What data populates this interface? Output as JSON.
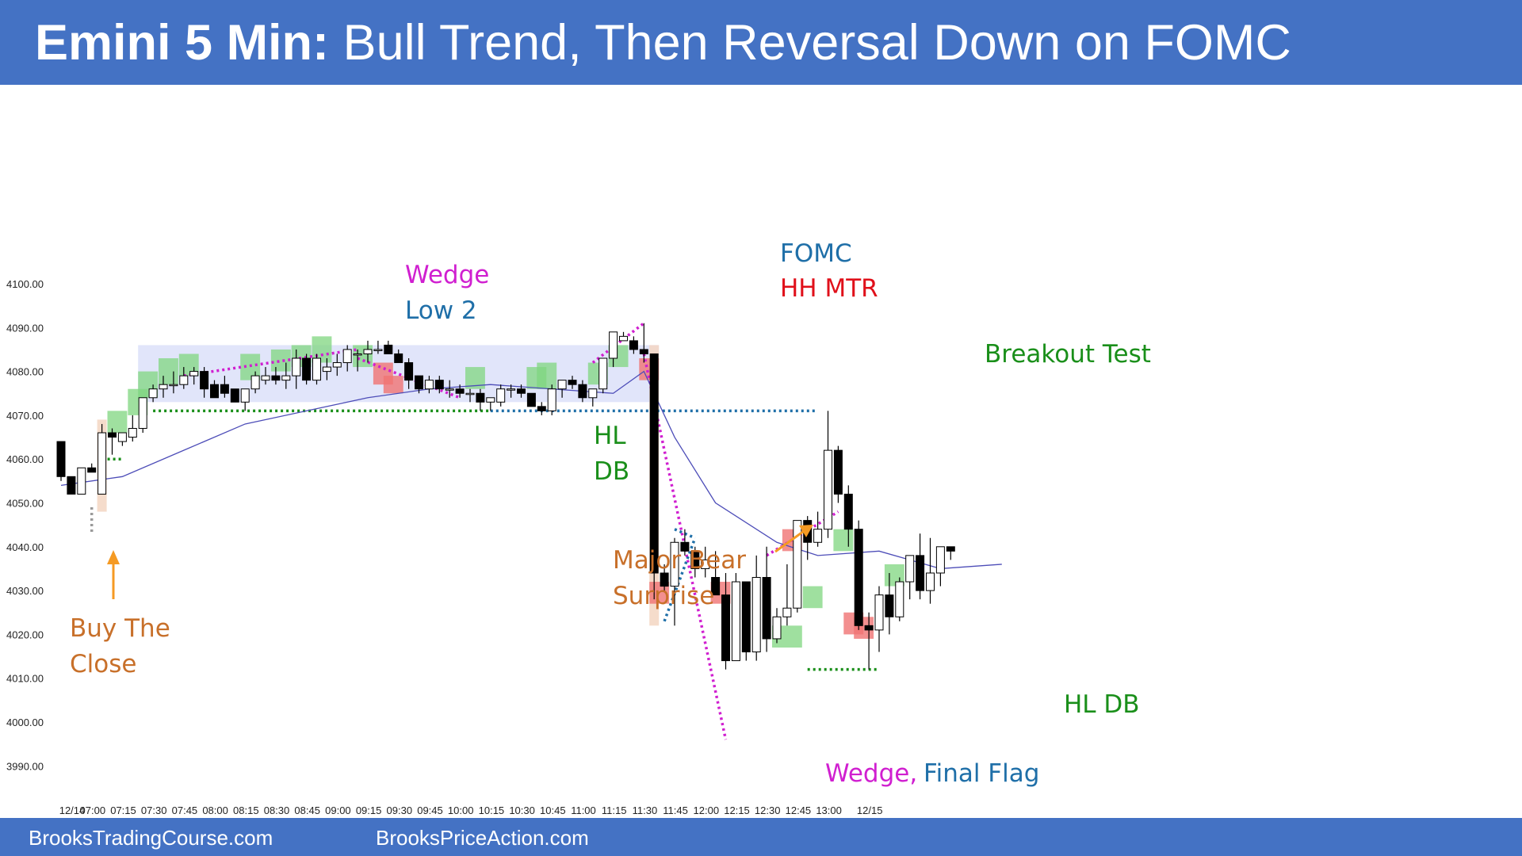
{
  "header": {
    "title_bold": "Emini 5 Min:",
    "title_rest": "Bull Trend, Then Reversal Down on FOMC"
  },
  "footer": {
    "link_left": "BrooksTradingCourse.com",
    "link_right": "BrooksPriceAction.com"
  },
  "colors": {
    "header_bg": "#4472c4",
    "bull_box": "#7fd67f",
    "bear_box": "#f07373",
    "range_box": "#c9d0f5",
    "highlight": "#f3d6c2",
    "ema": "#4d4db8",
    "green_dots": "#1a8f1a",
    "blue_dots": "#1f6fa8",
    "magenta_dots": "#d01fd0",
    "orange": "#f59a23"
  },
  "chart_data": {
    "type": "candlestick",
    "title": "Emini 5 Min: Bull Trend, Then Reversal Down on FOMC",
    "ylim": [
      3984,
      4112
    ],
    "yticks": [
      3990,
      4000,
      4010,
      4020,
      4030,
      4040,
      4050,
      4060,
      4070,
      4080,
      4090,
      4100
    ],
    "ytick_labels": [
      "3990.00",
      "4000.00",
      "4010.00",
      "4020.00",
      "4030.00",
      "4040.00",
      "4050.00",
      "4060.00",
      "4070.00",
      "4080.00",
      "4090.00",
      "4100.00"
    ],
    "x_tick_labels": [
      {
        "bar": 0,
        "label": "12/14"
      },
      {
        "bar": 2,
        "label": "07:00"
      },
      {
        "bar": 5,
        "label": "07:15"
      },
      {
        "bar": 8,
        "label": "07:30"
      },
      {
        "bar": 11,
        "label": "07:45"
      },
      {
        "bar": 14,
        "label": "08:00"
      },
      {
        "bar": 17,
        "label": "08:15"
      },
      {
        "bar": 20,
        "label": "08:30"
      },
      {
        "bar": 23,
        "label": "08:45"
      },
      {
        "bar": 26,
        "label": "09:00"
      },
      {
        "bar": 29,
        "label": "09:15"
      },
      {
        "bar": 32,
        "label": "09:30"
      },
      {
        "bar": 35,
        "label": "09:45"
      },
      {
        "bar": 38,
        "label": "10:00"
      },
      {
        "bar": 41,
        "label": "10:15"
      },
      {
        "bar": 44,
        "label": "10:30"
      },
      {
        "bar": 47,
        "label": "10:45"
      },
      {
        "bar": 50,
        "label": "11:00"
      },
      {
        "bar": 53,
        "label": "11:15"
      },
      {
        "bar": 56,
        "label": "11:30"
      },
      {
        "bar": 59,
        "label": "11:45"
      },
      {
        "bar": 62,
        "label": "12:00"
      },
      {
        "bar": 65,
        "label": "12:15"
      },
      {
        "bar": 68,
        "label": "12:30"
      },
      {
        "bar": 71,
        "label": "12:45"
      },
      {
        "bar": 74,
        "label": "13:00"
      },
      {
        "bar": 78,
        "label": "12/15"
      }
    ],
    "bars_ohlc": [
      [
        4064,
        4064,
        4055,
        4056
      ],
      [
        4056,
        4056,
        4052,
        4052
      ],
      [
        4052,
        4058,
        4052,
        4058
      ],
      [
        4058,
        4059,
        4057,
        4057
      ],
      [
        4052,
        4068,
        4052,
        4066
      ],
      [
        4066,
        4067,
        4061,
        4065
      ],
      [
        4064,
        4066,
        4063,
        4066
      ],
      [
        4065,
        4070,
        4064,
        4067
      ],
      [
        4067,
        4074,
        4066,
        4074
      ],
      [
        4074,
        4077,
        4073,
        4076
      ],
      [
        4076,
        4079,
        4074,
        4077
      ],
      [
        4077,
        4080,
        4075,
        4077
      ],
      [
        4077,
        4081,
        4076,
        4079
      ],
      [
        4079,
        4081,
        4077,
        4080
      ],
      [
        4080,
        4081,
        4074,
        4076
      ],
      [
        4077,
        4078,
        4074,
        4074
      ],
      [
        4077,
        4079,
        4074,
        4075
      ],
      [
        4076,
        4076,
        4073,
        4073
      ],
      [
        4073,
        4076,
        4071,
        4076
      ],
      [
        4076,
        4080,
        4075,
        4079
      ],
      [
        4078,
        4081,
        4077,
        4079
      ],
      [
        4079,
        4081,
        4077,
        4078
      ],
      [
        4078,
        4082,
        4076,
        4079
      ],
      [
        4079,
        4085,
        4076,
        4083
      ],
      [
        4083,
        4084,
        4077,
        4078
      ],
      [
        4078,
        4084,
        4077,
        4083
      ],
      [
        4080,
        4083,
        4078,
        4081
      ],
      [
        4081,
        4084,
        4079,
        4082
      ],
      [
        4082,
        4086,
        4080,
        4085
      ],
      [
        4084,
        4085,
        4080,
        4084
      ],
      [
        4084,
        4087,
        4082,
        4085
      ],
      [
        4085,
        4087,
        4084,
        4085
      ],
      [
        4086,
        4087,
        4084,
        4084
      ],
      [
        4084,
        4085,
        4082,
        4082
      ],
      [
        4082,
        4083,
        4076,
        4078
      ],
      [
        4079,
        4079,
        4075,
        4076
      ],
      [
        4076,
        4079,
        4075,
        4078
      ],
      [
        4078,
        4079,
        4075,
        4076
      ],
      [
        4076,
        4078,
        4074,
        4076
      ],
      [
        4076,
        4077,
        4074,
        4075
      ],
      [
        4075,
        4076,
        4073,
        4075
      ],
      [
        4075,
        4076,
        4071,
        4073
      ],
      [
        4073,
        4074,
        4071,
        4074
      ],
      [
        4073,
        4077,
        4072,
        4076
      ],
      [
        4076,
        4077,
        4074,
        4076
      ],
      [
        4076,
        4077,
        4074,
        4075
      ],
      [
        4075,
        4075,
        4072,
        4072
      ],
      [
        4072,
        4073,
        4070,
        4071
      ],
      [
        4071,
        4077,
        4070,
        4076
      ],
      [
        4076,
        4078,
        4074,
        4078
      ],
      [
        4078,
        4079,
        4076,
        4077
      ],
      [
        4077,
        4078,
        4073,
        4074
      ],
      [
        4074,
        4076,
        4072,
        4076
      ],
      [
        4076,
        4083,
        4075,
        4083
      ],
      [
        4083,
        4089,
        4081,
        4089
      ],
      [
        4087,
        4089,
        4087,
        4088
      ],
      [
        4087,
        4088,
        4084,
        4085
      ],
      [
        4085,
        4091,
        4082,
        4084
      ],
      [
        4084,
        4084,
        4028,
        4034
      ],
      [
        4034,
        4036,
        4030,
        4031
      ],
      [
        4031,
        4042,
        4022,
        4041
      ],
      [
        4041,
        4044,
        4038,
        4039
      ],
      [
        4039,
        4040,
        4033,
        4035
      ],
      [
        4035,
        4040,
        4033,
        4037
      ],
      [
        4033,
        4039,
        4029,
        4029
      ],
      [
        4029,
        4034,
        4012,
        4014
      ],
      [
        4014,
        4034,
        4014,
        4032
      ],
      [
        4032,
        4031,
        4014,
        4016
      ],
      [
        4016,
        4038,
        4014,
        4033
      ],
      [
        4033,
        4040,
        4016,
        4019
      ],
      [
        4019,
        4026,
        4018,
        4024
      ],
      [
        4024,
        4036,
        4022,
        4026
      ],
      [
        4026,
        4046,
        4025,
        4046
      ],
      [
        4046,
        4047,
        4037,
        4041
      ],
      [
        4041,
        4048,
        4040,
        4044
      ],
      [
        4044,
        4071,
        4042,
        4062
      ],
      [
        4062,
        4063,
        4050,
        4052
      ],
      [
        4052,
        4054,
        4040,
        4044
      ],
      [
        4044,
        4046,
        4021,
        4022
      ],
      [
        4022,
        4025,
        4012,
        4021
      ],
      [
        4021,
        4031,
        4016,
        4029
      ],
      [
        4029,
        4034,
        4020,
        4024
      ],
      [
        4024,
        4033,
        4023,
        4032
      ],
      [
        4032,
        4038,
        4028,
        4038
      ],
      [
        4038,
        4043,
        4028,
        4030
      ],
      [
        4030,
        4042,
        4027,
        4034
      ],
      [
        4034,
        4039,
        4031,
        4040
      ],
      [
        4040,
        4040,
        4037,
        4039
      ]
    ],
    "ema20": [
      [
        0,
        4054
      ],
      [
        6,
        4056
      ],
      [
        12,
        4062
      ],
      [
        18,
        4068
      ],
      [
        24,
        4071
      ],
      [
        30,
        4074
      ],
      [
        36,
        4076
      ],
      [
        42,
        4077
      ],
      [
        48,
        4076
      ],
      [
        54,
        4075
      ],
      [
        57,
        4080
      ],
      [
        60,
        4065
      ],
      [
        64,
        4050
      ],
      [
        70,
        4041
      ],
      [
        74,
        4038
      ],
      [
        80,
        4039
      ],
      [
        86,
        4035
      ],
      [
        92,
        4036
      ]
    ],
    "range_box": {
      "x_from_bar": 8,
      "x_to_bar": 58,
      "y_low": 4073,
      "y_high": 4086
    },
    "annotations": [
      {
        "text": "Wedge",
        "color": "#d01fd0"
      },
      {
        "text": "Low 2",
        "color": "#1f6fa8"
      },
      {
        "text": "FOMC",
        "color": "#1f6fa8"
      },
      {
        "text": "HH MTR",
        "color": "#e0101a"
      },
      {
        "text": "Breakout Test",
        "color": "#1a8f1a"
      },
      {
        "text": "HL",
        "color": "#1a8f1a"
      },
      {
        "text": "DB",
        "color": "#1a8f1a"
      },
      {
        "text": "Major Bear",
        "color": "#c8702a"
      },
      {
        "text": "Surprise",
        "color": "#c8702a"
      },
      {
        "text": "Buy The",
        "color": "#c8702a"
      },
      {
        "text": "Close",
        "color": "#c8702a"
      },
      {
        "text": "HL DB",
        "color": "#1a8f1a"
      },
      {
        "text": "Wedge,",
        "color": "#d01fd0"
      },
      {
        "text": "Final Flag",
        "color": "#1f6fa8"
      }
    ]
  }
}
